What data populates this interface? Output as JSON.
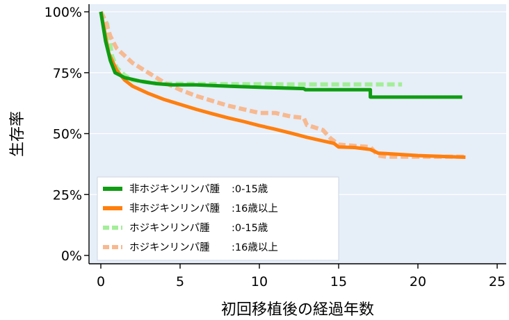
{
  "chart_data": {
    "type": "line",
    "title": "",
    "xlabel": "初回移植後の経過年数",
    "ylabel": "生存率",
    "xlim": [
      0,
      25
    ],
    "ylim": [
      0,
      100
    ],
    "x_ticks": [
      "0",
      "5",
      "10",
      "15",
      "20",
      "25"
    ],
    "y_ticks": [
      "0%",
      "25%",
      "50%",
      "75%",
      "100%"
    ],
    "grid": "horizontal",
    "background": "#e6eef8",
    "legend": {
      "position": "bottom-left"
    },
    "series": [
      {
        "name": "非ホジキンリンパ腫",
        "group": "0-15歳",
        "color": "#0f9d12",
        "dash": "solid",
        "points": [
          [
            0,
            100
          ],
          [
            0.3,
            88
          ],
          [
            0.6,
            80
          ],
          [
            0.9,
            75
          ],
          [
            1.5,
            73
          ],
          [
            2.5,
            71.5
          ],
          [
            3.5,
            70.5
          ],
          [
            4.5,
            70
          ],
          [
            6,
            70
          ],
          [
            8,
            69.5
          ],
          [
            10,
            69
          ],
          [
            12.8,
            68.5
          ],
          [
            12.9,
            68
          ],
          [
            17,
            68
          ],
          [
            17,
            65
          ],
          [
            22.8,
            65
          ]
        ]
      },
      {
        "name": "非ホジキンリンパ腫",
        "group": "16歳以上",
        "color": "#ff7f0e",
        "dash": "solid",
        "points": [
          [
            0,
            100
          ],
          [
            0.5,
            83
          ],
          [
            1,
            76
          ],
          [
            1.5,
            72
          ],
          [
            2,
            69.5
          ],
          [
            3,
            66.5
          ],
          [
            4,
            64
          ],
          [
            5,
            62
          ],
          [
            6,
            60
          ],
          [
            7,
            58.2
          ],
          [
            8,
            56.5
          ],
          [
            9,
            55
          ],
          [
            10,
            53.3
          ],
          [
            11,
            51.8
          ],
          [
            12,
            50.2
          ],
          [
            13,
            48.5
          ],
          [
            14,
            47
          ],
          [
            14.7,
            46
          ],
          [
            15,
            44.5
          ],
          [
            16,
            44.3
          ],
          [
            17,
            43.5
          ],
          [
            17.5,
            42
          ],
          [
            18,
            41.8
          ],
          [
            20,
            41
          ],
          [
            22,
            40.5
          ],
          [
            23,
            40.3
          ]
        ]
      },
      {
        "name": "ホジキンリンパ腫",
        "group": "0-15歳",
        "color": "#a3ee98",
        "dash": "dashed",
        "points": [
          [
            0,
            100
          ],
          [
            0.4,
            95
          ],
          [
            0.7,
            82
          ],
          [
            1,
            77
          ],
          [
            1.5,
            74
          ],
          [
            2,
            72
          ],
          [
            3,
            71
          ],
          [
            4,
            70.5
          ],
          [
            8,
            70.3
          ],
          [
            12,
            70.2
          ],
          [
            16,
            70.2
          ],
          [
            19,
            70.2
          ]
        ]
      },
      {
        "name": "ホジキンリンパ腫",
        "group": "16歳以上",
        "color": "#f7b990",
        "dash": "dashed",
        "points": [
          [
            0,
            100
          ],
          [
            0.3,
            96
          ],
          [
            0.6,
            90
          ],
          [
            1,
            85
          ],
          [
            1.5,
            82
          ],
          [
            2,
            79
          ],
          [
            3,
            75
          ],
          [
            4,
            71
          ],
          [
            5,
            68
          ],
          [
            6,
            65.5
          ],
          [
            7,
            63.5
          ],
          [
            8,
            61.5
          ],
          [
            9,
            60
          ],
          [
            10,
            58.5
          ],
          [
            11,
            58.5
          ],
          [
            12,
            57
          ],
          [
            12.8,
            56.5
          ],
          [
            13,
            53.5
          ],
          [
            14,
            51.5
          ],
          [
            14.5,
            48
          ],
          [
            15,
            45.5
          ],
          [
            16,
            45
          ],
          [
            17,
            44.5
          ],
          [
            17.5,
            41
          ],
          [
            18,
            40.5
          ],
          [
            23,
            40.5
          ]
        ]
      }
    ]
  }
}
